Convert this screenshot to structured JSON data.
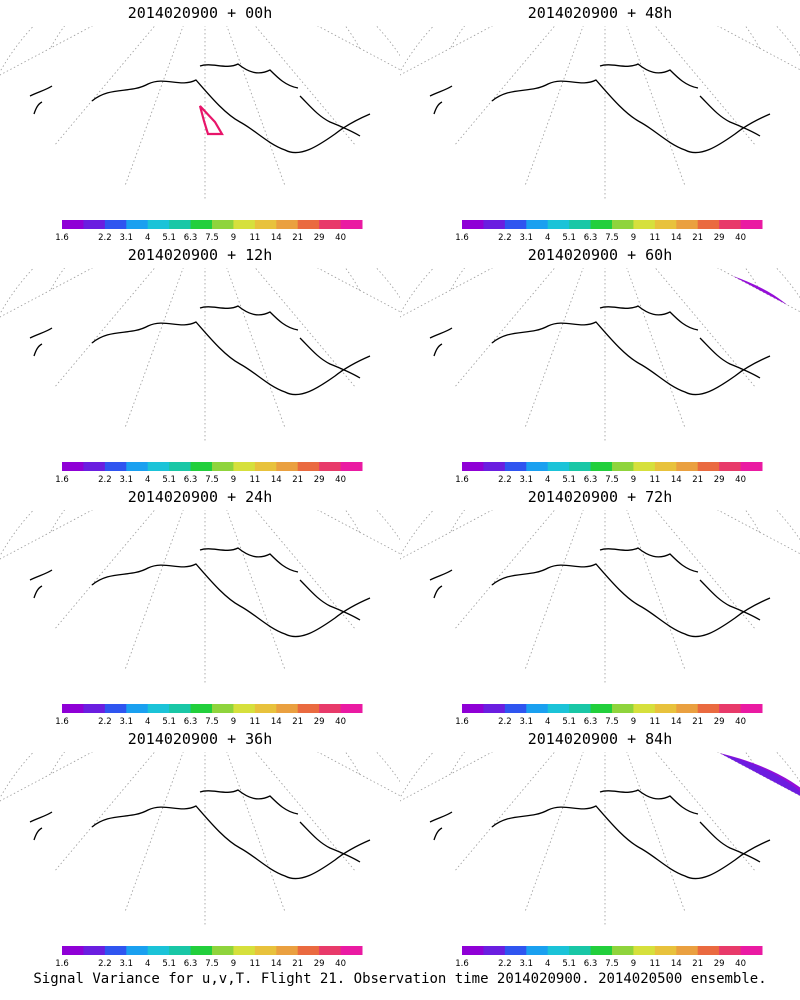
{
  "footer": "Signal Variance for u,v,T. Flight 21. Observation time 2014020900. 2014020500 ensemble.",
  "colorbar": {
    "labels": [
      "1.6",
      "2.2",
      "3.1",
      "4",
      "5.1",
      "6.3",
      "7.5",
      "9",
      "11",
      "14",
      "21",
      "29",
      "40"
    ],
    "colors": [
      "#8f00d6",
      "#6a1ee0",
      "#2f55f0",
      "#1aa0f0",
      "#1bc3d8",
      "#19c7a6",
      "#22cf3c",
      "#8fd43c",
      "#d6e03c",
      "#e8c23c",
      "#eaa040",
      "#ea6a40",
      "#e83a6a",
      "#ea1aa2"
    ]
  },
  "panels": [
    {
      "title": "2014020900 + 00h",
      "max_level": 8,
      "overlay": "flight-track"
    },
    {
      "title": "2014020900 + 48h",
      "max_level": 10
    },
    {
      "title": "2014020900 + 12h",
      "max_level": 9
    },
    {
      "title": "2014020900 + 60h",
      "max_level": 10
    },
    {
      "title": "2014020900 + 24h",
      "max_level": 9
    },
    {
      "title": "2014020900 + 72h",
      "max_level": 11
    },
    {
      "title": "2014020900 + 36h",
      "max_level": 9
    },
    {
      "title": "2014020900 + 84h",
      "max_level": 11
    }
  ]
}
